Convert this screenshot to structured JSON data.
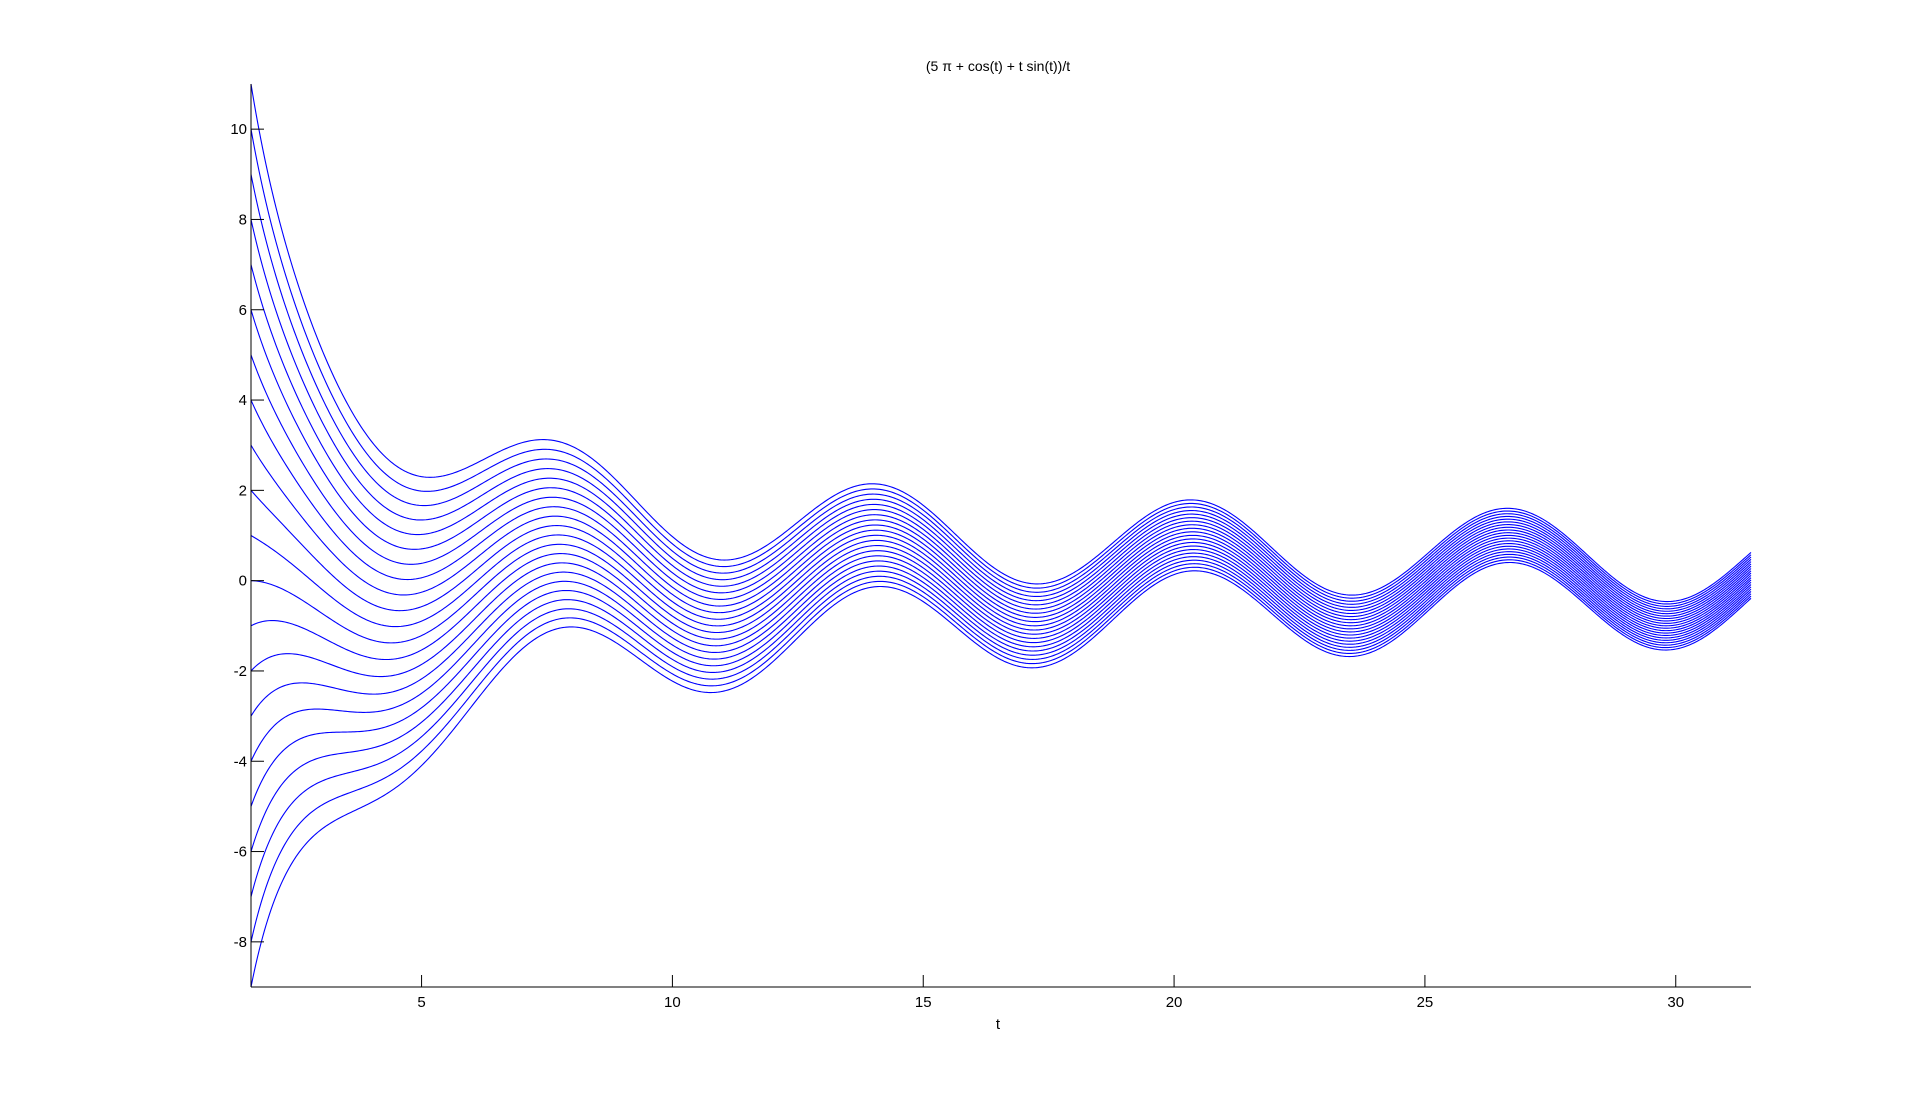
{
  "chart_data": {
    "type": "line",
    "title": "(5 π + cos(t) + t sin(t))/t",
    "xlabel": "t",
    "ylabel": "",
    "xlim": [
      1.6,
      31.5
    ],
    "ylim": [
      -9,
      11
    ],
    "xticks": [
      "5",
      "10",
      "15",
      "20",
      "25",
      "30"
    ],
    "yticks": [
      "-8",
      "-6",
      "-4",
      "-2",
      "0",
      "2",
      "4",
      "6",
      "8",
      "10"
    ],
    "grid": false,
    "legend": "none",
    "line_color": "#0000ff",
    "family": {
      "count": 21,
      "expression": "(5 π + cos(t) + t sin(t))/t",
      "t_range": [
        1.6,
        31.5
      ],
      "start_values": [
        11,
        10,
        9,
        8,
        7,
        6,
        5,
        4,
        3,
        2,
        1,
        0,
        -1,
        -2,
        -3,
        -4,
        -5,
        -6,
        -7,
        -8,
        -9
      ]
    }
  }
}
